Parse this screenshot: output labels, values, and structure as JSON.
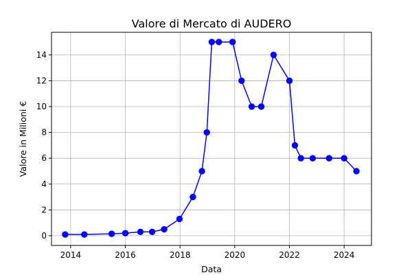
{
  "chart_data": {
    "type": "line",
    "title": "Valore di Mercato di AUDERO",
    "xlabel": "Data",
    "ylabel": "Valore in Milioni €",
    "xlim": [
      2013.3,
      2025.0
    ],
    "ylim": [
      -0.75,
      15.75
    ],
    "x_ticks": [
      2014,
      2016,
      2018,
      2020,
      2022,
      2024
    ],
    "y_ticks": [
      0,
      2,
      4,
      6,
      8,
      10,
      12,
      14
    ],
    "grid": true,
    "series": [
      {
        "color": "#0000ff",
        "marker": "circle",
        "x": [
          2013.8,
          2014.5,
          2015.5,
          2016.0,
          2016.55,
          2016.98,
          2017.42,
          2017.98,
          2018.47,
          2018.8,
          2018.98,
          2019.16,
          2019.42,
          2019.92,
          2020.25,
          2020.62,
          2020.97,
          2021.42,
          2022.0,
          2022.2,
          2022.42,
          2022.85,
          2023.45,
          2024.0,
          2024.45
        ],
        "y": [
          0.1,
          0.1,
          0.15,
          0.2,
          0.3,
          0.3,
          0.5,
          1.3,
          3.0,
          5.0,
          8.0,
          15.0,
          15.0,
          15.0,
          12.0,
          10.0,
          10.0,
          14.0,
          12.0,
          7.0,
          6.0,
          6.0,
          6.0,
          6.0,
          5.0
        ]
      }
    ]
  }
}
